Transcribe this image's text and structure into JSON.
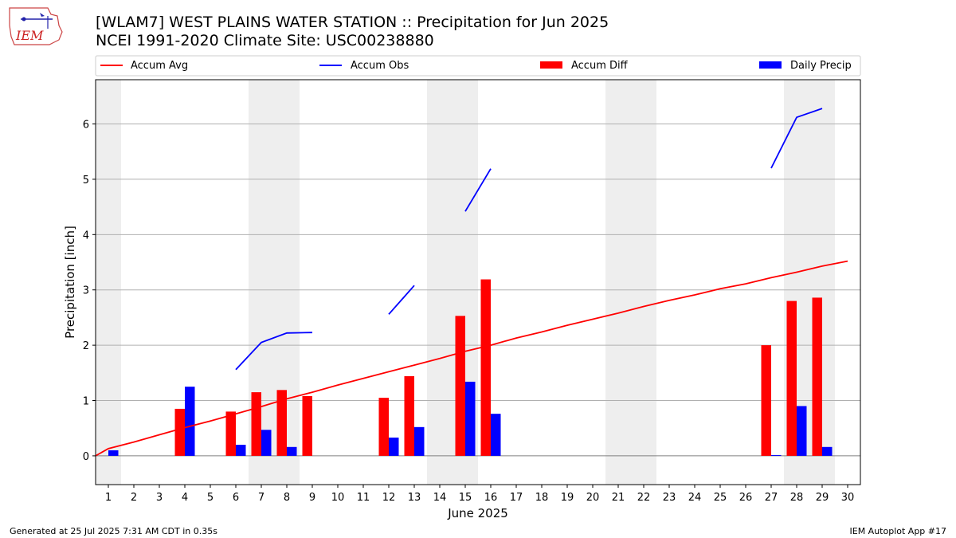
{
  "header": {
    "title_line1": "[WLAM7] WEST PLAINS WATER STATION :: Precipitation for Jun 2025",
    "title_line2": "NCEI 1991-2020 Climate Site: USC00238880"
  },
  "logo": {
    "text": "IEM",
    "icon": "iem-logo-icon"
  },
  "footer": {
    "left": "Generated at 25 Jul 2025 7:31 AM CDT in 0.35s",
    "right": "IEM Autoplot App #17"
  },
  "colors": {
    "accum_avg": "#ff0000",
    "accum_obs": "#0000ff",
    "accum_diff": "#ff0000",
    "daily_precip": "#0000ff",
    "weekend_shade": "#eeeeee",
    "grid": "#b0b0b0"
  },
  "chart_data": {
    "type": "bar",
    "title": "[WLAM7] WEST PLAINS WATER STATION :: Precipitation for Jun 2025",
    "subtitle": "NCEI 1991-2020 Climate Site: USC00238880",
    "xlabel": "June 2025",
    "ylabel": "Precipitation [inch]",
    "xlim": [
      0.5,
      30.5
    ],
    "ylim": [
      -0.52,
      6.8
    ],
    "yticks": [
      0,
      1,
      2,
      3,
      4,
      5,
      6
    ],
    "grid": "horizontal",
    "legend_position": "top",
    "categories": [
      1,
      2,
      3,
      4,
      5,
      6,
      7,
      8,
      9,
      10,
      11,
      12,
      13,
      14,
      15,
      16,
      17,
      18,
      19,
      20,
      21,
      22,
      23,
      24,
      25,
      26,
      27,
      28,
      29,
      30
    ],
    "weekend_shading": [
      [
        0.5,
        1.5
      ],
      [
        6.5,
        8.5
      ],
      [
        13.5,
        15.5
      ],
      [
        20.5,
        22.5
      ],
      [
        27.5,
        29.5
      ]
    ],
    "series": [
      {
        "name": "Accum Avg",
        "type": "line",
        "x": [
          0.5,
          1,
          2,
          3,
          4,
          5,
          6,
          7,
          8,
          9,
          10,
          11,
          12,
          13,
          14,
          15,
          16,
          17,
          18,
          19,
          20,
          21,
          22,
          23,
          24,
          25,
          26,
          27,
          28,
          29,
          30
        ],
        "values": [
          0,
          0.13,
          0.25,
          0.38,
          0.51,
          0.63,
          0.76,
          0.89,
          1.03,
          1.15,
          1.28,
          1.4,
          1.52,
          1.64,
          1.76,
          1.89,
          2.0,
          2.13,
          2.24,
          2.36,
          2.47,
          2.58,
          2.7,
          2.81,
          2.91,
          3.02,
          3.11,
          3.22,
          3.32,
          3.43,
          3.52
        ]
      },
      {
        "name": "Accum Obs",
        "type": "line",
        "x": [
          6,
          7,
          8,
          9,
          null,
          12,
          13,
          null,
          15,
          16,
          null,
          27,
          28,
          29
        ],
        "values": [
          1.56,
          2.05,
          2.22,
          2.23,
          null,
          2.56,
          3.08,
          null,
          4.42,
          5.19,
          null,
          5.2,
          6.12,
          6.28
        ]
      },
      {
        "name": "Accum Diff",
        "type": "bar",
        "x": [
          4,
          6,
          7,
          8,
          9,
          12,
          13,
          15,
          16,
          27,
          28,
          29
        ],
        "values": [
          0.85,
          0.8,
          1.15,
          1.19,
          1.08,
          1.05,
          1.44,
          2.53,
          3.19,
          2.0,
          2.8,
          2.86
        ]
      },
      {
        "name": "Daily Precip",
        "type": "bar",
        "x": [
          1,
          4,
          6,
          7,
          8,
          12,
          13,
          15,
          16,
          27,
          28,
          29
        ],
        "values": [
          0.1,
          1.25,
          0.2,
          0.47,
          0.16,
          0.33,
          0.52,
          1.34,
          0.76,
          0.01,
          0.9,
          0.16
        ]
      }
    ]
  }
}
